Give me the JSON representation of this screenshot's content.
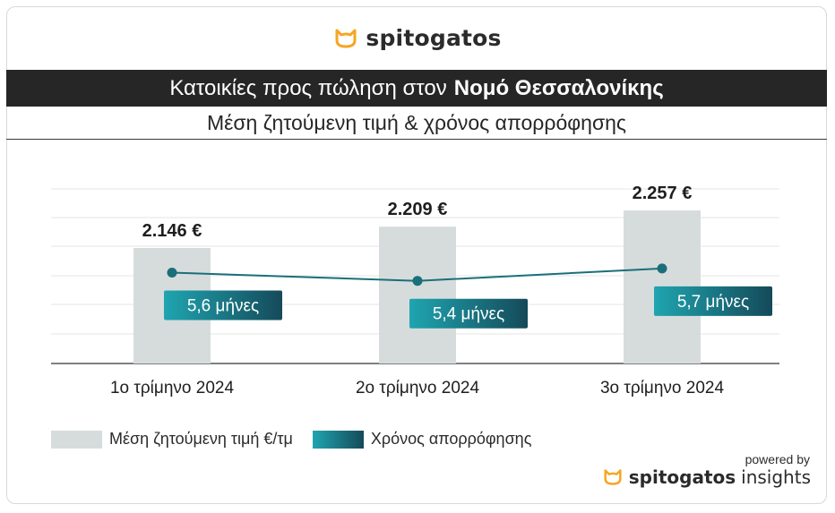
{
  "brand": {
    "name": "spitogatos",
    "logo_color": "#f5a623"
  },
  "header": {
    "title_regular": "Κατοικίες προς πώληση στον",
    "title_bold": "Νομό Θεσσαλονίκης",
    "subtitle": "Μέση ζητούμενη τιμή & χρόνος απορρόφησης"
  },
  "chart_data": {
    "type": "bar",
    "categories": [
      "1ο τρίμηνο 2024",
      "2ο τρίμηνο 2024",
      "3ο τρίμηνο 2024"
    ],
    "series": [
      {
        "name": "Μέση ζητούμενη τιμή €/τμ",
        "type": "bar",
        "values": [
          2146,
          2209,
          2257
        ],
        "labels": [
          "2.146 €",
          "2.209 €",
          "2.257 €"
        ],
        "color": "#d6dcdc"
      },
      {
        "name": "Χρόνος απορρόφησης",
        "type": "line",
        "values": [
          5.6,
          5.4,
          5.7
        ],
        "labels": [
          "5,6 μήνες",
          "5,4 μήνες",
          "5,7 μήνες"
        ],
        "color": "#1a6f7a"
      }
    ],
    "grid": true,
    "legend_position": "bottom-left"
  },
  "legend": {
    "bar_label": "Μέση ζητούμενη τιμή €/τμ",
    "line_label": "Χρόνος απορρόφησης"
  },
  "footer": {
    "powered_by": "powered by",
    "brand": "spitogatos",
    "suffix": "insights"
  }
}
